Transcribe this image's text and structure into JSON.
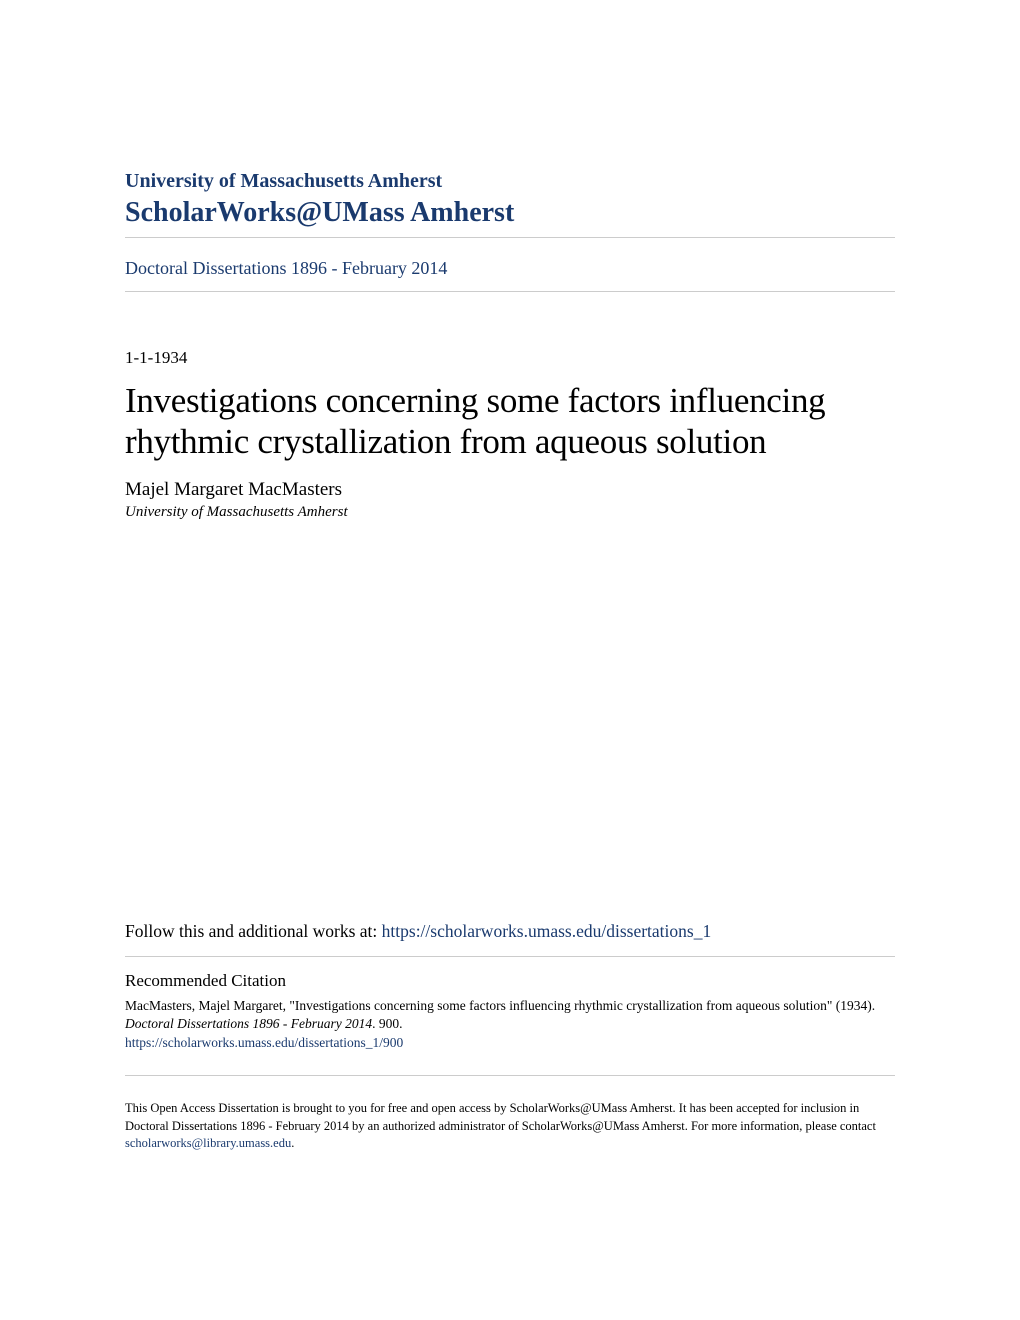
{
  "header": {
    "university": "University of Massachusetts Amherst",
    "repository": "ScholarWorks@UMass Amherst"
  },
  "breadcrumb": {
    "collection": "Doctoral Dissertations 1896 - February 2014"
  },
  "metadata": {
    "date": "1-1-1934",
    "title": "Investigations concerning some factors influencing rhythmic crystallization from aqueous solution",
    "author": "Majel Margaret MacMasters",
    "affiliation": "University of Massachusetts Amherst"
  },
  "follow": {
    "label": "Follow this and additional works at: ",
    "url": "https://scholarworks.umass.edu/dissertations_1"
  },
  "citation": {
    "heading": "Recommended Citation",
    "text_part1": "MacMasters, Majel Margaret, \"Investigations concerning some factors influencing rhythmic crystallization from aqueous solution\" (1934). ",
    "series": "Doctoral Dissertations 1896 - February 2014",
    "text_part2": ". 900.",
    "url": "https://scholarworks.umass.edu/dissertations_1/900"
  },
  "footer": {
    "text": "This Open Access Dissertation is brought to you for free and open access by ScholarWorks@UMass Amherst. It has been accepted for inclusion in Doctoral Dissertations 1896 - February 2014 by an authorized administrator of ScholarWorks@UMass Amherst. For more information, please contact ",
    "contact": "scholarworks@library.umass.edu",
    "period": "."
  },
  "colors": {
    "link": "#1a3a6e",
    "text": "#000000",
    "border": "#cccccc",
    "background": "#ffffff"
  },
  "typography": {
    "font_family": "Georgia, Times New Roman, serif",
    "title_size": 35,
    "repo_size": 28,
    "university_size": 20,
    "author_size": 19,
    "breadcrumb_size": 18,
    "body_size": 17,
    "citation_size": 13.5,
    "footer_size": 12.5
  }
}
